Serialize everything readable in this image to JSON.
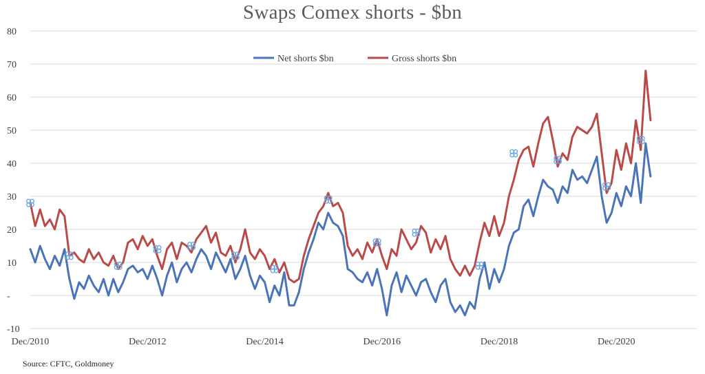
{
  "chart_data": {
    "type": "line",
    "title": "Swaps Comex shorts - $bn",
    "ylim": [
      -10,
      80
    ],
    "y_ticks": [
      -10,
      0,
      10,
      20,
      30,
      40,
      50,
      60,
      70,
      80
    ],
    "y_tick_labels": [
      "-10",
      "-",
      "10",
      "20",
      "30",
      "40",
      "50",
      "60",
      "70",
      "80"
    ],
    "x_range": [
      "Dec/2010",
      "Jun/2021"
    ],
    "x_ticks": [
      "Dec/2010",
      "Dec/2012",
      "Dec/2014",
      "Dec/2016",
      "Dec/2018",
      "Dec/2020"
    ],
    "grid": "horizontal",
    "legend_position": "top-center",
    "series": [
      {
        "name": "Net shorts $bn",
        "color": "#4a74b8",
        "points": [
          [
            "2010-12",
            14
          ],
          [
            "2011-01",
            10
          ],
          [
            "2011-02",
            15
          ],
          [
            "2011-03",
            11
          ],
          [
            "2011-04",
            8
          ],
          [
            "2011-05",
            12
          ],
          [
            "2011-06",
            9
          ],
          [
            "2011-07",
            14
          ],
          [
            "2011-08",
            5
          ],
          [
            "2011-09",
            -1
          ],
          [
            "2011-10",
            4
          ],
          [
            "2011-11",
            2
          ],
          [
            "2011-12",
            6
          ],
          [
            "2012-01",
            3
          ],
          [
            "2012-02",
            1
          ],
          [
            "2012-03",
            5
          ],
          [
            "2012-04",
            0
          ],
          [
            "2012-05",
            5
          ],
          [
            "2012-06",
            1
          ],
          [
            "2012-07",
            4
          ],
          [
            "2012-08",
            8
          ],
          [
            "2012-09",
            9
          ],
          [
            "2012-10",
            7
          ],
          [
            "2012-11",
            8
          ],
          [
            "2012-12",
            5
          ],
          [
            "2013-01",
            9
          ],
          [
            "2013-02",
            5
          ],
          [
            "2013-03",
            0
          ],
          [
            "2013-04",
            6
          ],
          [
            "2013-05",
            10
          ],
          [
            "2013-06",
            4
          ],
          [
            "2013-07",
            8
          ],
          [
            "2013-08",
            10
          ],
          [
            "2013-09",
            7
          ],
          [
            "2013-10",
            11
          ],
          [
            "2013-11",
            14
          ],
          [
            "2013-12",
            12
          ],
          [
            "2014-01",
            8
          ],
          [
            "2014-02",
            13
          ],
          [
            "2014-03",
            10
          ],
          [
            "2014-04",
            7
          ],
          [
            "2014-05",
            11
          ],
          [
            "2014-06",
            5
          ],
          [
            "2014-07",
            8
          ],
          [
            "2014-08",
            12
          ],
          [
            "2014-09",
            6
          ],
          [
            "2014-10",
            2
          ],
          [
            "2014-11",
            6
          ],
          [
            "2014-12",
            4
          ],
          [
            "2015-01",
            -2
          ],
          [
            "2015-02",
            3
          ],
          [
            "2015-03",
            0
          ],
          [
            "2015-04",
            7
          ],
          [
            "2015-05",
            -3
          ],
          [
            "2015-06",
            -3
          ],
          [
            "2015-07",
            1
          ],
          [
            "2015-08",
            8
          ],
          [
            "2015-09",
            13
          ],
          [
            "2015-10",
            17
          ],
          [
            "2015-11",
            22
          ],
          [
            "2015-12",
            20
          ],
          [
            "2016-01",
            25
          ],
          [
            "2016-02",
            22
          ],
          [
            "2016-03",
            21
          ],
          [
            "2016-04",
            18
          ],
          [
            "2016-05",
            8
          ],
          [
            "2016-06",
            7
          ],
          [
            "2016-07",
            5
          ],
          [
            "2016-08",
            4
          ],
          [
            "2016-09",
            7
          ],
          [
            "2016-10",
            3
          ],
          [
            "2016-11",
            8
          ],
          [
            "2016-12",
            2
          ],
          [
            "2017-01",
            -6
          ],
          [
            "2017-02",
            3
          ],
          [
            "2017-03",
            7
          ],
          [
            "2017-04",
            1
          ],
          [
            "2017-05",
            6
          ],
          [
            "2017-06",
            3
          ],
          [
            "2017-07",
            0
          ],
          [
            "2017-08",
            4
          ],
          [
            "2017-09",
            5
          ],
          [
            "2017-10",
            1
          ],
          [
            "2017-11",
            -2
          ],
          [
            "2017-12",
            3
          ],
          [
            "2018-01",
            5
          ],
          [
            "2018-02",
            -2
          ],
          [
            "2018-03",
            -5
          ],
          [
            "2018-04",
            -3
          ],
          [
            "2018-05",
            -6
          ],
          [
            "2018-06",
            -2
          ],
          [
            "2018-07",
            -4
          ],
          [
            "2018-08",
            5
          ],
          [
            "2018-09",
            10
          ],
          [
            "2018-10",
            2
          ],
          [
            "2018-11",
            8
          ],
          [
            "2018-12",
            4
          ],
          [
            "2019-01",
            8
          ],
          [
            "2019-02",
            15
          ],
          [
            "2019-03",
            19
          ],
          [
            "2019-04",
            20
          ],
          [
            "2019-05",
            27
          ],
          [
            "2019-06",
            29
          ],
          [
            "2019-07",
            24
          ],
          [
            "2019-08",
            30
          ],
          [
            "2019-09",
            35
          ],
          [
            "2019-10",
            33
          ],
          [
            "2019-11",
            32
          ],
          [
            "2019-12",
            28
          ],
          [
            "2020-01",
            33
          ],
          [
            "2020-02",
            31
          ],
          [
            "2020-03",
            38
          ],
          [
            "2020-04",
            35
          ],
          [
            "2020-05",
            36
          ],
          [
            "2020-06",
            34
          ],
          [
            "2020-07",
            38
          ],
          [
            "2020-08",
            42
          ],
          [
            "2020-09",
            30
          ],
          [
            "2020-10",
            22
          ],
          [
            "2020-11",
            25
          ],
          [
            "2020-12",
            31
          ],
          [
            "2021-01",
            27
          ],
          [
            "2021-02",
            33
          ],
          [
            "2021-03",
            30
          ],
          [
            "2021-04",
            40
          ],
          [
            "2021-05",
            28
          ],
          [
            "2021-06",
            46
          ],
          [
            "2021-07",
            36
          ]
        ]
      },
      {
        "name": "Gross shorts $bn",
        "color": "#b94a48",
        "points": [
          [
            "2010-12",
            28
          ],
          [
            "2011-01",
            21
          ],
          [
            "2011-02",
            26
          ],
          [
            "2011-03",
            21
          ],
          [
            "2011-04",
            23
          ],
          [
            "2011-05",
            20
          ],
          [
            "2011-06",
            26
          ],
          [
            "2011-07",
            24
          ],
          [
            "2011-08",
            12
          ],
          [
            "2011-09",
            13
          ],
          [
            "2011-10",
            11
          ],
          [
            "2011-11",
            10
          ],
          [
            "2011-12",
            14
          ],
          [
            "2012-01",
            11
          ],
          [
            "2012-02",
            13
          ],
          [
            "2012-03",
            10
          ],
          [
            "2012-04",
            9
          ],
          [
            "2012-05",
            12
          ],
          [
            "2012-06",
            8
          ],
          [
            "2012-07",
            10
          ],
          [
            "2012-08",
            16
          ],
          [
            "2012-09",
            17
          ],
          [
            "2012-10",
            14
          ],
          [
            "2012-11",
            18
          ],
          [
            "2012-12",
            15
          ],
          [
            "2013-01",
            17
          ],
          [
            "2013-02",
            12
          ],
          [
            "2013-03",
            8
          ],
          [
            "2013-04",
            14
          ],
          [
            "2013-05",
            16
          ],
          [
            "2013-06",
            11
          ],
          [
            "2013-07",
            16
          ],
          [
            "2013-08",
            15
          ],
          [
            "2013-09",
            13
          ],
          [
            "2013-10",
            17
          ],
          [
            "2013-11",
            19
          ],
          [
            "2013-12",
            21
          ],
          [
            "2014-01",
            16
          ],
          [
            "2014-02",
            19
          ],
          [
            "2014-03",
            13
          ],
          [
            "2014-04",
            12
          ],
          [
            "2014-05",
            15
          ],
          [
            "2014-06",
            10
          ],
          [
            "2014-07",
            14
          ],
          [
            "2014-08",
            20
          ],
          [
            "2014-09",
            13
          ],
          [
            "2014-10",
            11
          ],
          [
            "2014-11",
            14
          ],
          [
            "2014-12",
            12
          ],
          [
            "2015-01",
            8
          ],
          [
            "2015-02",
            11
          ],
          [
            "2015-03",
            7
          ],
          [
            "2015-04",
            10
          ],
          [
            "2015-05",
            5
          ],
          [
            "2015-06",
            4
          ],
          [
            "2015-07",
            5
          ],
          [
            "2015-08",
            12
          ],
          [
            "2015-09",
            17
          ],
          [
            "2015-10",
            21
          ],
          [
            "2015-11",
            25
          ],
          [
            "2015-12",
            27
          ],
          [
            "2016-01",
            31
          ],
          [
            "2016-02",
            27
          ],
          [
            "2016-03",
            28
          ],
          [
            "2016-04",
            25
          ],
          [
            "2016-05",
            15
          ],
          [
            "2016-06",
            12
          ],
          [
            "2016-07",
            14
          ],
          [
            "2016-08",
            11
          ],
          [
            "2016-09",
            16
          ],
          [
            "2016-10",
            13
          ],
          [
            "2016-11",
            17
          ],
          [
            "2016-12",
            12
          ],
          [
            "2017-01",
            8
          ],
          [
            "2017-02",
            14
          ],
          [
            "2017-03",
            12
          ],
          [
            "2017-04",
            20
          ],
          [
            "2017-05",
            17
          ],
          [
            "2017-06",
            14
          ],
          [
            "2017-07",
            16
          ],
          [
            "2017-08",
            21
          ],
          [
            "2017-09",
            19
          ],
          [
            "2017-10",
            13
          ],
          [
            "2017-11",
            17
          ],
          [
            "2017-12",
            14
          ],
          [
            "2018-01",
            18
          ],
          [
            "2018-02",
            11
          ],
          [
            "2018-03",
            8
          ],
          [
            "2018-04",
            6
          ],
          [
            "2018-05",
            9
          ],
          [
            "2018-06",
            6
          ],
          [
            "2018-07",
            9
          ],
          [
            "2018-08",
            16
          ],
          [
            "2018-09",
            22
          ],
          [
            "2018-10",
            18
          ],
          [
            "2018-11",
            24
          ],
          [
            "2018-12",
            18
          ],
          [
            "2019-01",
            22
          ],
          [
            "2019-02",
            30
          ],
          [
            "2019-03",
            35
          ],
          [
            "2019-04",
            41
          ],
          [
            "2019-05",
            44
          ],
          [
            "2019-06",
            45
          ],
          [
            "2019-07",
            39
          ],
          [
            "2019-08",
            46
          ],
          [
            "2019-09",
            52
          ],
          [
            "2019-10",
            54
          ],
          [
            "2019-11",
            47
          ],
          [
            "2019-12",
            39
          ],
          [
            "2020-01",
            43
          ],
          [
            "2020-02",
            41
          ],
          [
            "2020-03",
            48
          ],
          [
            "2020-04",
            51
          ],
          [
            "2020-05",
            50
          ],
          [
            "2020-06",
            49
          ],
          [
            "2020-07",
            51
          ],
          [
            "2020-08",
            55
          ],
          [
            "2020-09",
            43
          ],
          [
            "2020-10",
            31
          ],
          [
            "2020-11",
            34
          ],
          [
            "2020-12",
            44
          ],
          [
            "2021-01",
            38
          ],
          [
            "2021-02",
            46
          ],
          [
            "2021-03",
            40
          ],
          [
            "2021-04",
            53
          ],
          [
            "2021-05",
            44
          ],
          [
            "2021-06",
            68
          ],
          [
            "2021-07",
            53
          ]
        ]
      }
    ],
    "annotations": [
      {
        "type": "highlight-markers",
        "series": "Net shorts $bn",
        "color": "#6aa7e6",
        "points": [
          [
            "2010-12",
            28
          ],
          [
            "2011-08",
            12
          ],
          [
            "2012-06",
            9
          ],
          [
            "2013-02",
            14
          ],
          [
            "2013-09",
            15
          ],
          [
            "2014-06",
            12
          ],
          [
            "2015-02",
            8
          ],
          [
            "2016-01",
            29
          ],
          [
            "2016-11",
            16
          ],
          [
            "2017-07",
            19
          ],
          [
            "2018-08",
            9
          ],
          [
            "2019-03",
            43
          ],
          [
            "2019-12",
            41
          ],
          [
            "2020-10",
            33
          ],
          [
            "2021-05",
            47
          ]
        ]
      }
    ]
  },
  "source_note": "Source: CFTC, Goldmoney"
}
